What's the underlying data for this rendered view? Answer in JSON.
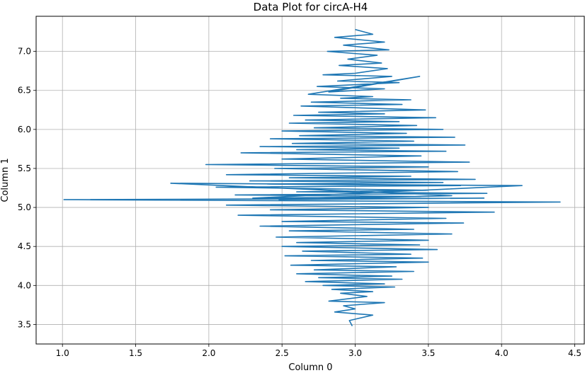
{
  "chart_data": {
    "type": "line",
    "title": "Data Plot for circA-H4",
    "xlabel": "Column 0",
    "ylabel": "Column 1",
    "xlim": [
      0.82,
      4.57
    ],
    "ylim": [
      3.25,
      7.45
    ],
    "xticks": [
      1.0,
      1.5,
      2.0,
      2.5,
      3.0,
      3.5,
      4.0,
      4.5
    ],
    "yticks": [
      3.5,
      4.0,
      4.5,
      5.0,
      5.5,
      6.0,
      6.5,
      7.0
    ],
    "grid": true,
    "legend": "none",
    "series": [
      {
        "color": "#1f77b4",
        "x": [
          3.0,
          3.12,
          2.86,
          3.2,
          2.92,
          3.23,
          2.81,
          3.15,
          2.95,
          3.18,
          2.89,
          3.22,
          3.0,
          2.78,
          3.25,
          2.88,
          3.3,
          2.74,
          3.2,
          2.82,
          3.44,
          2.68,
          3.12,
          2.9,
          3.38,
          2.7,
          3.32,
          2.63,
          3.48,
          2.75,
          3.2,
          2.58,
          3.55,
          2.66,
          3.3,
          2.55,
          3.42,
          2.72,
          3.6,
          2.5,
          3.35,
          2.62,
          3.68,
          2.42,
          3.4,
          2.57,
          3.75,
          2.35,
          3.3,
          2.6,
          3.62,
          2.22,
          3.45,
          2.5,
          3.78,
          1.98,
          3.5,
          2.45,
          3.7,
          2.12,
          3.38,
          2.55,
          3.82,
          2.28,
          3.6,
          2.4,
          3.72,
          2.05,
          3.5,
          2.6,
          3.9,
          2.18,
          3.45,
          2.3,
          4.14,
          1.74,
          3.66,
          2.48,
          3.88,
          1.01,
          4.4,
          2.12,
          3.5,
          2.42,
          3.95,
          2.2,
          3.62,
          2.5,
          3.74,
          2.35,
          3.4,
          2.55,
          3.66,
          2.46,
          3.5,
          2.6,
          3.44,
          2.5,
          3.56,
          2.64,
          3.38,
          2.52,
          3.46,
          2.7,
          3.5,
          2.56,
          3.28,
          2.72,
          3.4,
          2.6,
          3.25,
          2.75,
          3.32,
          2.66,
          3.2,
          2.78,
          3.27,
          2.84,
          3.12,
          2.9,
          3.08,
          2.82,
          3.2,
          2.92,
          3.0,
          2.86,
          3.12,
          2.96,
          2.98
        ],
        "y": [
          7.28,
          7.22,
          7.18,
          7.12,
          7.08,
          7.02,
          7.0,
          6.95,
          6.9,
          6.85,
          6.82,
          6.78,
          6.72,
          6.7,
          6.68,
          6.62,
          6.6,
          6.55,
          6.52,
          6.48,
          6.68,
          6.45,
          6.42,
          6.4,
          6.38,
          6.35,
          6.32,
          6.3,
          6.25,
          6.22,
          6.2,
          6.18,
          6.15,
          6.12,
          6.1,
          6.08,
          6.05,
          6.02,
          6.0,
          5.98,
          5.95,
          5.92,
          5.9,
          5.88,
          5.85,
          5.82,
          5.8,
          5.78,
          5.76,
          5.74,
          5.72,
          5.7,
          5.66,
          5.62,
          5.58,
          5.55,
          5.52,
          5.5,
          5.46,
          5.42,
          5.4,
          5.38,
          5.36,
          5.34,
          5.32,
          5.3,
          5.28,
          5.26,
          5.22,
          5.2,
          5.18,
          5.16,
          5.14,
          5.12,
          5.28,
          5.31,
          5.15,
          5.1,
          5.12,
          5.1,
          5.07,
          5.03,
          5.0,
          4.97,
          4.94,
          4.9,
          4.86,
          4.82,
          4.8,
          4.76,
          4.72,
          4.7,
          4.66,
          4.62,
          4.58,
          4.55,
          4.52,
          4.5,
          4.46,
          4.44,
          4.4,
          4.38,
          4.35,
          4.32,
          4.3,
          4.26,
          4.24,
          4.2,
          4.18,
          4.15,
          4.12,
          4.1,
          4.08,
          4.05,
          4.02,
          4.0,
          3.98,
          3.95,
          3.92,
          3.9,
          3.86,
          3.8,
          3.78,
          3.74,
          3.7,
          3.66,
          3.62,
          3.55,
          3.48
        ]
      }
    ]
  }
}
